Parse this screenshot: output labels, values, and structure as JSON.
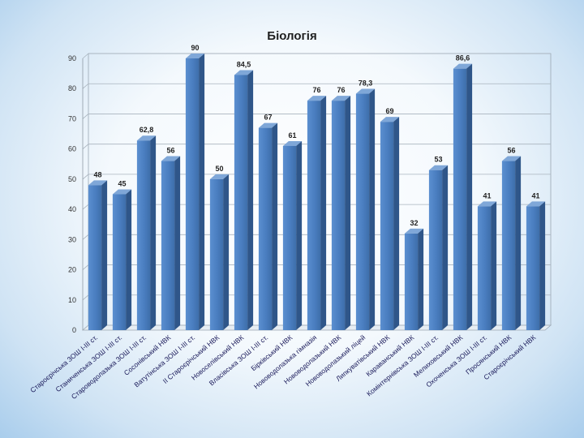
{
  "chart_data": {
    "type": "bar",
    "title": "Біологія",
    "xlabel": "",
    "ylabel": "",
    "ylim": [
      0,
      90
    ],
    "yticks": [
      0,
      10,
      20,
      30,
      40,
      50,
      60,
      70,
      80,
      90
    ],
    "grid": true,
    "legend": "none",
    "bar_color": "#4a7ec0",
    "categories": [
      "Староєрічська ЗОШ І-ІІІ ст.",
      "Станиченська ЗОШ І-ІІІ ст.",
      "Староводолазька ЗОШ І-ІІІ ст.",
      "Сосонівський НВК",
      "Ватутінська ЗОШ І-ІІІ ст.",
      "ІІ Староєрічський НВК",
      "Новоселівський НВК",
      "Власівська ЗОШ І-ІІІ ст.",
      "Бірківський НВК",
      "Нововодолазька гімназія",
      "Нововодолазький НВК",
      "Нововодолазький ліцей",
      "Липкуватівський НВК",
      "Караванський НВК",
      "Комінтернівська ЗОШ І-ІІІ ст.",
      "Мелиховський НВК",
      "Охоченська ЗОШ І-ІІІ ст.",
      "Просянський НВК",
      "Староєрічський НВК"
    ],
    "values": [
      48,
      45,
      62.8,
      56,
      90,
      50,
      84.5,
      67,
      61,
      76,
      76,
      78.3,
      69,
      32,
      53,
      86.6,
      41,
      56,
      41
    ],
    "value_labels": [
      "48",
      "45",
      "62,8",
      "56",
      "90",
      "50",
      "84,5",
      "67",
      "61",
      "76",
      "76",
      "78,3",
      "69",
      "32",
      "53",
      "86,6",
      "41",
      "56",
      "41"
    ]
  }
}
